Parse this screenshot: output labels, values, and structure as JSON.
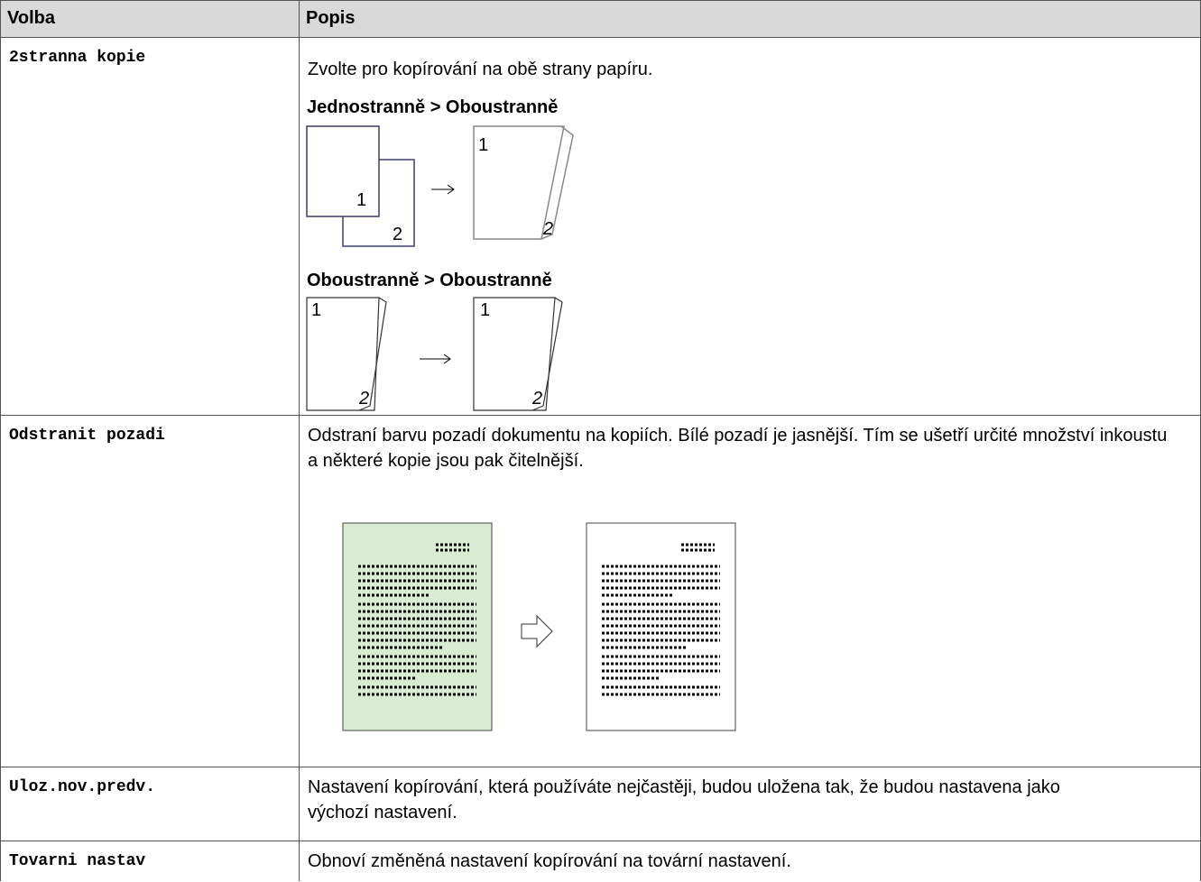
{
  "table": {
    "header": [
      "Volba",
      "Popis"
    ],
    "rows": [
      {
        "option": "2stranna kopie",
        "text": "Zvolte pro kopírování na obě strany papíru.",
        "examples": [
          "Jednostranně > Oboustranně",
          "Oboustranně > Oboustranně"
        ],
        "page_numbers": [
          "1",
          "2"
        ]
      },
      {
        "option": "Odstranit pozadi",
        "text": "Odstraní barvu pozadí dokumentu na kopiích. Bílé pozadí je jasnější. Tím se ušetří určité množství inkoustu a některé kopie jsou pak čitelnější."
      },
      {
        "option": "Uloz.nov.predv.",
        "text": "Nastavení kopírování, která používáte nejčastěji, budou uložena tak, že budou nastavena jako výchozí nastavení."
      },
      {
        "option": "Tovarni nastav",
        "text": "Obnoví změněná nastavení kopírování na tovární nastavení."
      }
    ]
  }
}
